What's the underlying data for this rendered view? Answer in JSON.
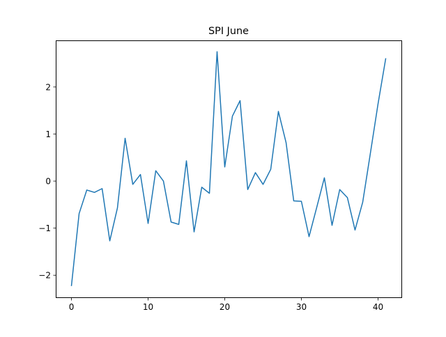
{
  "chart_data": {
    "type": "line",
    "title": "SPI June",
    "xlabel": "",
    "ylabel": "",
    "xlim": [
      -2.05,
      43.05
    ],
    "ylim": [
      -2.47,
      2.99
    ],
    "x_ticks": [
      0,
      10,
      20,
      30,
      40
    ],
    "y_ticks": [
      -2,
      -1,
      0,
      1,
      2
    ],
    "x_tick_labels": [
      "0",
      "10",
      "20",
      "30",
      "40"
    ],
    "y_tick_labels": [
      "−2",
      "−1",
      "0",
      "1",
      "2"
    ],
    "grid": false,
    "legend": "none",
    "series": [
      {
        "color": "#1f77b4",
        "x": [
          0,
          1,
          2,
          3,
          4,
          5,
          6,
          7,
          8,
          9,
          10,
          11,
          12,
          13,
          14,
          15,
          16,
          17,
          18,
          19,
          20,
          21,
          22,
          23,
          24,
          25,
          26,
          27,
          28,
          29,
          30,
          31,
          32,
          33,
          34,
          35,
          36,
          37,
          38,
          39,
          40,
          41
        ],
        "values": [
          -2.22,
          -0.69,
          -0.19,
          -0.24,
          -0.16,
          -1.27,
          -0.57,
          0.91,
          -0.07,
          0.14,
          -0.9,
          0.22,
          0.0,
          -0.87,
          -0.92,
          0.43,
          -1.08,
          -0.13,
          -0.26,
          2.75,
          0.3,
          1.38,
          1.71,
          -0.18,
          0.18,
          -0.07,
          0.25,
          1.48,
          0.82,
          -0.42,
          -0.43,
          -1.18,
          -0.56,
          0.07,
          -0.94,
          -0.18,
          -0.35,
          -1.04,
          -0.45,
          0.59,
          1.64,
          2.6
        ]
      }
    ]
  }
}
